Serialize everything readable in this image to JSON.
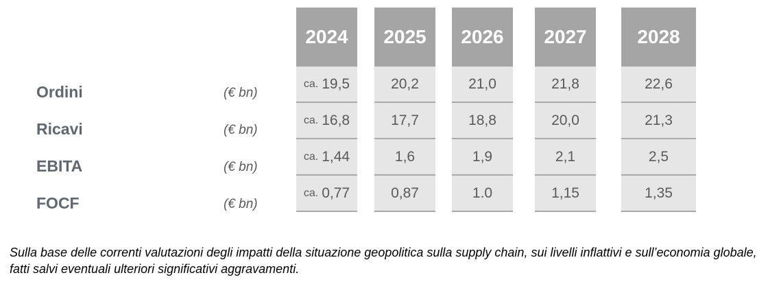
{
  "table": {
    "years": [
      "2024",
      "2025",
      "2026",
      "2027",
      "2028"
    ],
    "rows": [
      {
        "label": "Ordini",
        "unit": "(€ bn)",
        "values": [
          {
            "prefix": "ca.",
            "value": "19,5"
          },
          {
            "prefix": "",
            "value": "20,2"
          },
          {
            "prefix": "",
            "value": "21,0"
          },
          {
            "prefix": "",
            "value": "21,8"
          },
          {
            "prefix": "",
            "value": "22,6"
          }
        ]
      },
      {
        "label": "Ricavi",
        "unit": "(€ bn)",
        "values": [
          {
            "prefix": "ca.",
            "value": "16,8"
          },
          {
            "prefix": "",
            "value": "17,7"
          },
          {
            "prefix": "",
            "value": "18,8"
          },
          {
            "prefix": "",
            "value": "20,0"
          },
          {
            "prefix": "",
            "value": "21,3"
          }
        ]
      },
      {
        "label": "EBITA",
        "unit": "(€ bn)",
        "values": [
          {
            "prefix": "ca.",
            "value": "1,44"
          },
          {
            "prefix": "",
            "value": "1,6"
          },
          {
            "prefix": "",
            "value": "1,9"
          },
          {
            "prefix": "",
            "value": "2,1"
          },
          {
            "prefix": "",
            "value": "2,5"
          }
        ]
      },
      {
        "label": "FOCF",
        "unit": "(€ bn)",
        "values": [
          {
            "prefix": "ca.",
            "value": "0,77"
          },
          {
            "prefix": "",
            "value": "0,87"
          },
          {
            "prefix": "",
            "value": "1.0"
          },
          {
            "prefix": "",
            "value": "1,15"
          },
          {
            "prefix": "",
            "value": "1,35"
          }
        ]
      }
    ]
  },
  "footnote": "Sulla base delle correnti valutazioni degli impatti della situazione geopolitica sulla supply chain, sui livelli inflattivi e sull’economia globale, fatti salvi eventuali ulteriori significativi aggravamenti."
}
